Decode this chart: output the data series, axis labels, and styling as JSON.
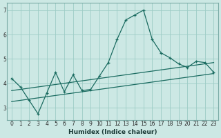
{
  "xlabel": "Humidex (Indice chaleur)",
  "bg_color": "#cce8e4",
  "grid_color": "#9dccc6",
  "line_color": "#1a6b60",
  "spine_color": "#7aaba6",
  "xlim": [
    -0.5,
    23.5
  ],
  "ylim": [
    2.5,
    7.3
  ],
  "xticks": [
    0,
    1,
    2,
    3,
    4,
    5,
    6,
    7,
    8,
    9,
    10,
    11,
    12,
    13,
    14,
    15,
    16,
    17,
    18,
    19,
    20,
    21,
    22,
    23
  ],
  "yticks": [
    3,
    4,
    5,
    6,
    7
  ],
  "line1_x": [
    0,
    1,
    2,
    3,
    4,
    5,
    6,
    7,
    8,
    9,
    10,
    11,
    12,
    13,
    14,
    15,
    16,
    17,
    18,
    19,
    20,
    21,
    22,
    23
  ],
  "line1_y": [
    4.2,
    3.85,
    3.3,
    2.75,
    3.6,
    4.45,
    3.65,
    4.35,
    3.7,
    3.75,
    4.3,
    4.85,
    5.8,
    6.6,
    6.8,
    7.0,
    5.8,
    5.25,
    5.05,
    4.8,
    4.65,
    4.9,
    4.85,
    4.45
  ],
  "line2_x": [
    0,
    23
  ],
  "line2_y": [
    3.7,
    4.85
  ],
  "line3_x": [
    0,
    23
  ],
  "line3_y": [
    3.25,
    4.4
  ]
}
